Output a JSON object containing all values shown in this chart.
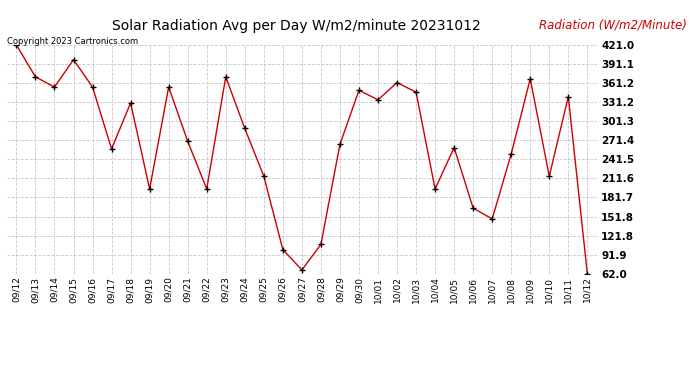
{
  "title": "Solar Radiation Avg per Day W/m2/minute 20231012",
  "copyright_text": "Copyright 2023 Cartronics.com",
  "ylabel": "Radiation (W/m2/Minute)",
  "ylabel_color": "#cc0000",
  "background_color": "#ffffff",
  "plot_bg_color": "#ffffff",
  "grid_color": "#c8c8c8",
  "line_color": "#cc0000",
  "marker_color": "#000000",
  "dates": [
    "09/12",
    "09/13",
    "09/14",
    "09/15",
    "09/16",
    "09/17",
    "09/18",
    "09/19",
    "09/20",
    "09/21",
    "09/22",
    "09/23",
    "09/24",
    "09/25",
    "09/26",
    "09/27",
    "09/28",
    "09/29",
    "09/30",
    "10/01",
    "10/02",
    "10/03",
    "10/04",
    "10/05",
    "10/06",
    "10/07",
    "10/08",
    "10/09",
    "10/10",
    "10/11",
    "10/12"
  ],
  "values": [
    421.0,
    371.0,
    355.0,
    398.0,
    355.0,
    258.0,
    330.0,
    195.0,
    355.0,
    270.0,
    195.0,
    371.0,
    290.0,
    215.0,
    100.0,
    68.0,
    108.0,
    265.0,
    350.0,
    335.0,
    362.0,
    347.0,
    195.0,
    260.0,
    165.0,
    148.0,
    250.0,
    368.0,
    215.0,
    340.0,
    62.0
  ],
  "ylim_min": 62.0,
  "ylim_max": 421.0,
  "yticks": [
    421.0,
    391.1,
    361.2,
    331.2,
    301.3,
    271.4,
    241.5,
    211.6,
    181.7,
    151.8,
    121.8,
    91.9,
    62.0
  ]
}
